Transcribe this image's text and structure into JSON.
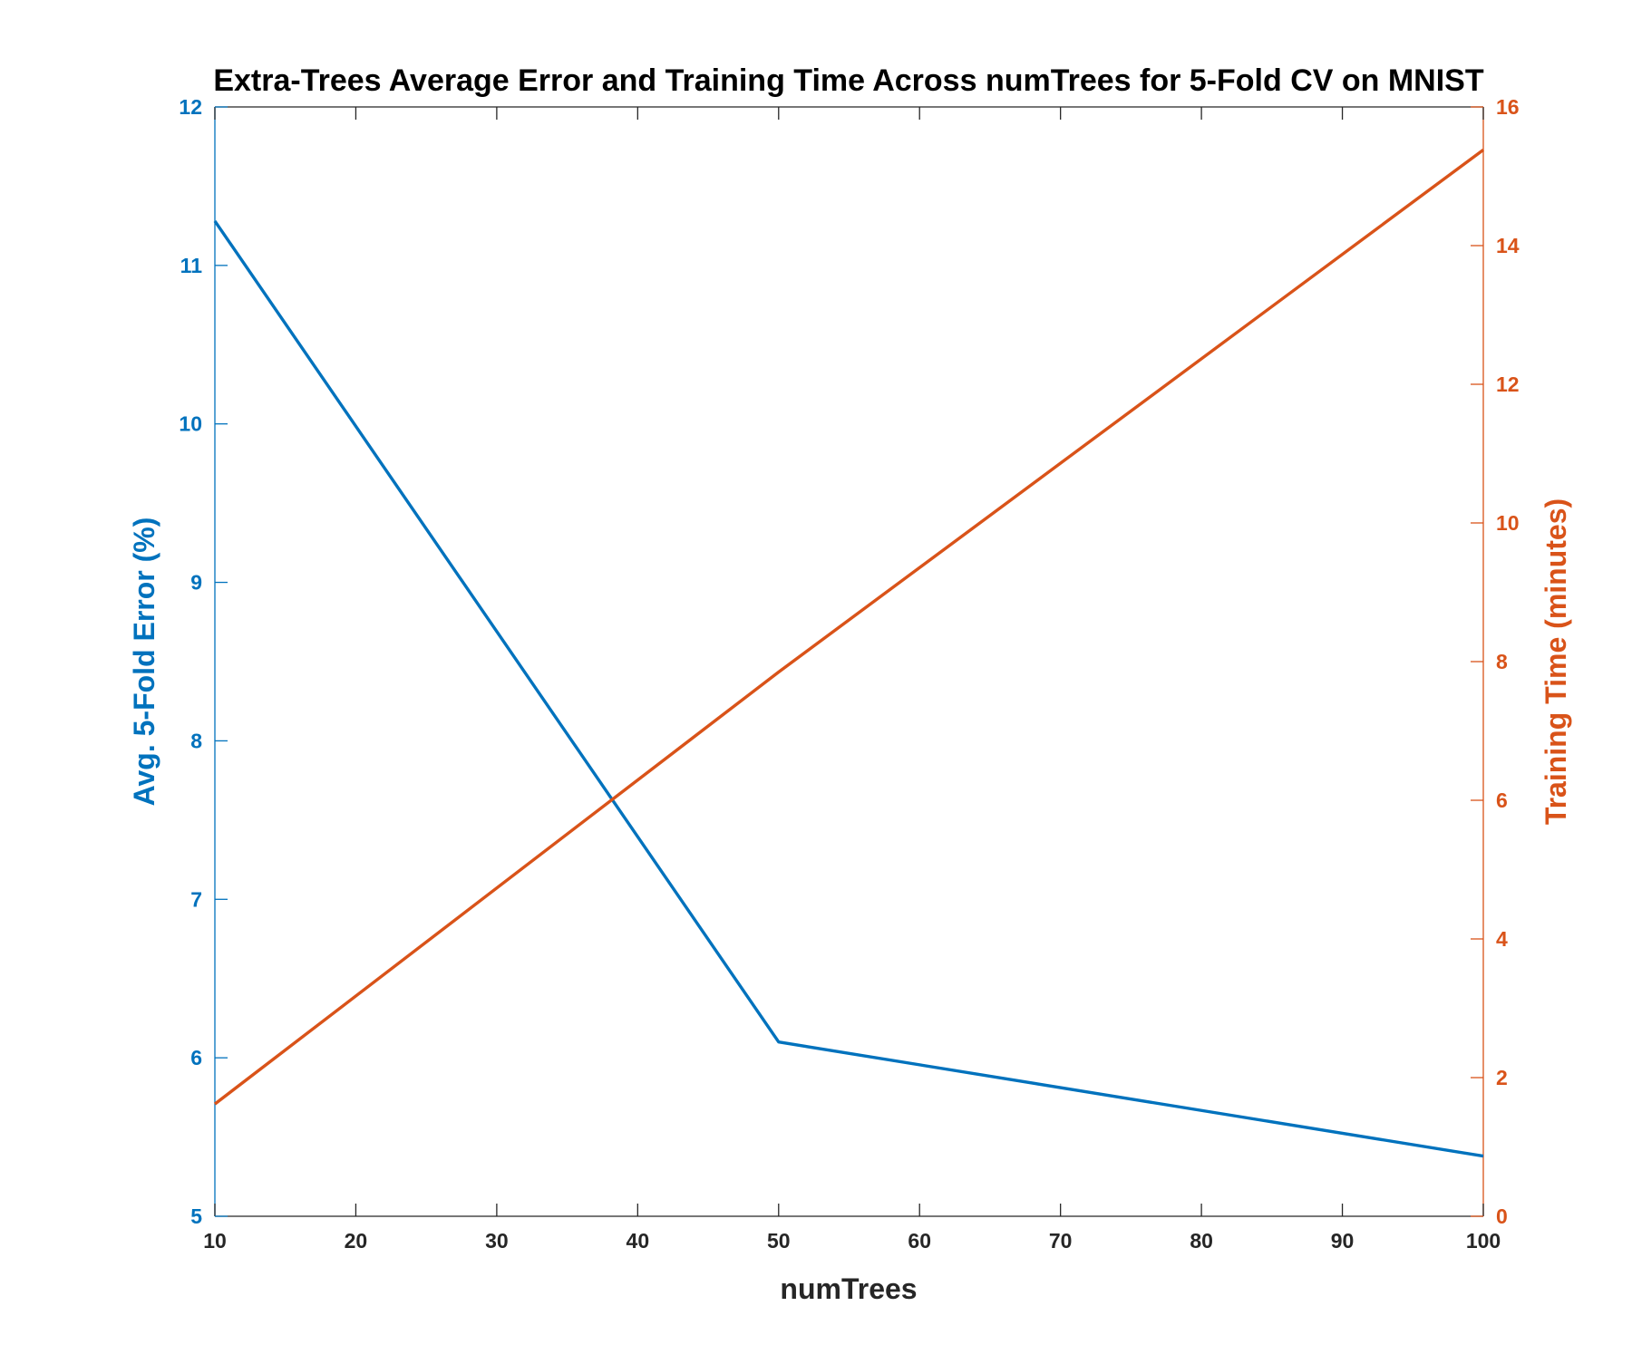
{
  "chart_data": {
    "type": "line",
    "title": "Extra-Trees Average Error and Training Time Across numTrees for 5-Fold CV on MNIST",
    "xlabel": "numTrees",
    "xlim": [
      10,
      100
    ],
    "xticks": [
      10,
      20,
      30,
      40,
      50,
      60,
      70,
      80,
      90,
      100
    ],
    "y_left": {
      "label": "Avg. 5-Fold Error (%)",
      "lim": [
        5,
        12
      ],
      "ticks": [
        5,
        6,
        7,
        8,
        9,
        10,
        11,
        12
      ],
      "color": "#0072BD"
    },
    "y_right": {
      "label": "Training Time (minutes)",
      "lim": [
        0,
        16
      ],
      "ticks": [
        0,
        2,
        4,
        6,
        8,
        10,
        12,
        14,
        16
      ],
      "color": "#D95319"
    },
    "series": [
      {
        "axis": "left",
        "color": "#0072BD",
        "x": [
          10,
          50,
          100
        ],
        "y": [
          11.28,
          6.1,
          5.38
        ]
      },
      {
        "axis": "right",
        "color": "#D95319",
        "x": [
          10,
          50,
          100
        ],
        "y": [
          1.62,
          7.85,
          15.38
        ]
      }
    ],
    "grid": false,
    "legend": "none"
  }
}
